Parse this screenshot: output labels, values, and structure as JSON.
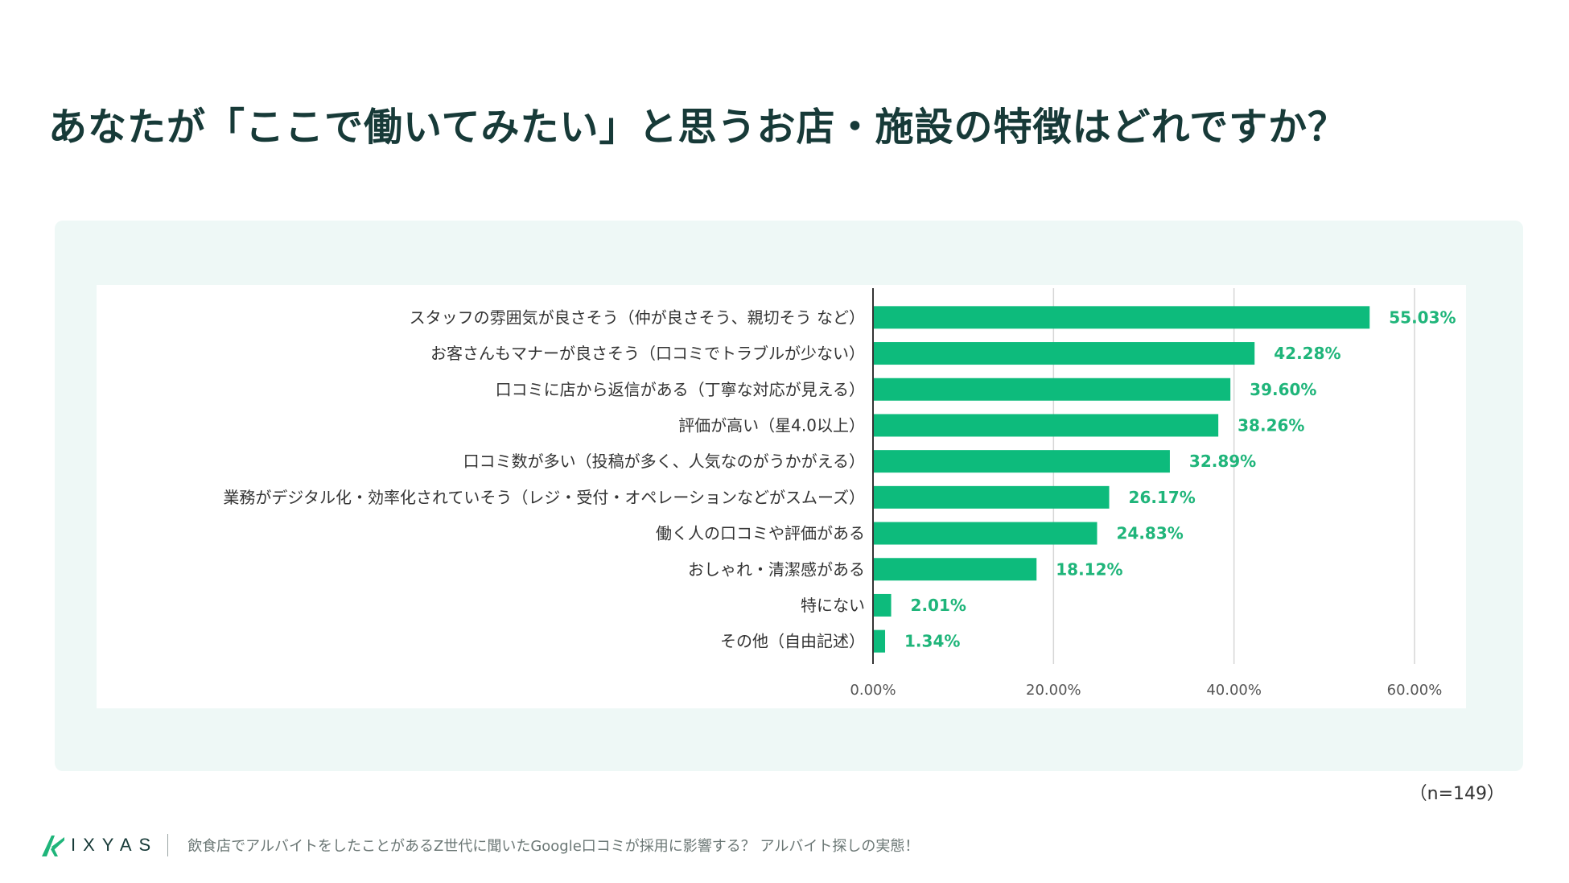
{
  "title": "あなたが「ここで働いてみたい」と思うお店・施設の特徴はどれですか？",
  "sample_size": "（n=149）",
  "footer": {
    "logo_text": "IXYAS",
    "caption": "飲食店でアルバイトをしたことがあるZ世代に聞いたGoogle口コミが採用に影響する？ アルバイト探しの実態！"
  },
  "colors": {
    "bar": "#0dbb7c",
    "value_label": "#1fb57a",
    "panel_bg": "#eef8f6",
    "title": "#173a38"
  },
  "chart_data": {
    "type": "bar",
    "orientation": "horizontal",
    "categories": [
      "スタッフの雰囲気が良さそう（仲が良さそう、親切そう など）",
      "お客さんもマナーが良さそう（口コミでトラブルが少ない）",
      "口コミに店から返信がある（丁寧な対応が見える）",
      "評価が高い（星4.0以上）",
      "口コミ数が多い（投稿が多く、人気なのがうかがえる）",
      "業務がデジタル化・効率化されていそう（レジ・受付・オペレーションなどがスムーズ）",
      "働く人の口コミや評価がある",
      "おしゃれ・清潔感がある",
      "特にない",
      "その他（自由記述）"
    ],
    "values": [
      55.03,
      42.28,
      39.6,
      38.26,
      32.89,
      26.17,
      24.83,
      18.12,
      2.01,
      1.34
    ],
    "value_labels": [
      "55.03%",
      "42.28%",
      "39.60%",
      "38.26%",
      "32.89%",
      "26.17%",
      "24.83%",
      "18.12%",
      "2.01%",
      "1.34%"
    ],
    "x_ticks": [
      0,
      20,
      40,
      60
    ],
    "x_tick_labels": [
      "0.00%",
      "20.00%",
      "40.00%",
      "60.00%"
    ],
    "xlim": [
      0,
      60
    ],
    "grid": true,
    "legend": "none"
  }
}
